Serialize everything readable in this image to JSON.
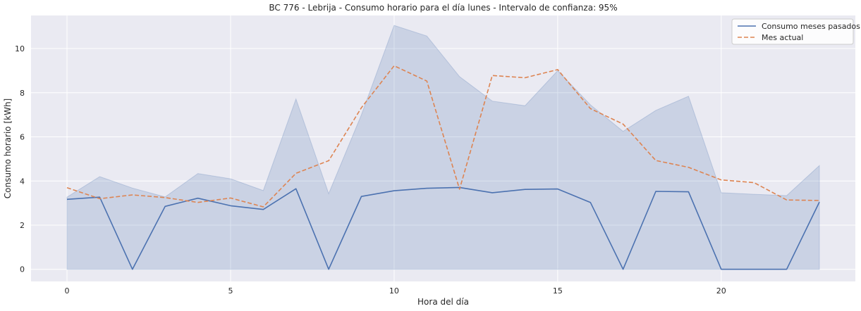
{
  "chart_data": {
    "type": "line",
    "title": "BC 776 - Lebrija - Consumo horario para el día lunes - Intervalo de confianza: 95%",
    "xlabel": "Hora del día",
    "ylabel": "Consumo horario [kWh]",
    "xlim": [
      -1.1,
      24.1
    ],
    "ylim": [
      -0.55,
      11.5
    ],
    "x_ticks": [
      0,
      5,
      10,
      15,
      20
    ],
    "y_ticks": [
      0,
      2,
      4,
      6,
      8,
      10
    ],
    "grid": true,
    "legend_position": "top-right",
    "x": [
      0,
      1,
      2,
      3,
      4,
      5,
      6,
      7,
      8,
      9,
      10,
      11,
      12,
      13,
      14,
      15,
      16,
      17,
      18,
      19,
      20,
      21,
      22,
      23
    ],
    "series": [
      {
        "name": "Consumo meses pasados",
        "style": "solid",
        "color": "#4c72b0",
        "values": [
          3.17,
          3.27,
          0.0,
          2.85,
          3.22,
          2.88,
          2.71,
          3.65,
          0.0,
          3.3,
          3.56,
          3.67,
          3.71,
          3.47,
          3.62,
          3.64,
          3.03,
          0.0,
          3.53,
          3.51,
          0.0,
          0.0,
          0.0,
          3.05
        ]
      },
      {
        "name": "Mes actual",
        "style": "dashed",
        "color": "#dd8452",
        "values": [
          3.7,
          3.2,
          3.37,
          3.25,
          3.03,
          3.23,
          2.83,
          4.35,
          4.92,
          7.32,
          9.22,
          8.53,
          3.63,
          8.78,
          8.68,
          9.05,
          7.28,
          6.58,
          4.93,
          4.62,
          4.05,
          3.93,
          3.14,
          3.12
        ]
      }
    ],
    "confidence_band": {
      "color": "#4c72b0",
      "lower": [
        0,
        0,
        0,
        0,
        0,
        0,
        0,
        0,
        0,
        0,
        0,
        0,
        0,
        0,
        0,
        0,
        0,
        0,
        0,
        0,
        0,
        0,
        0,
        0
      ],
      "upper": [
        3.27,
        4.2,
        3.68,
        3.28,
        4.34,
        4.1,
        3.57,
        7.72,
        3.43,
        7.0,
        11.05,
        10.57,
        8.73,
        7.62,
        7.41,
        9.0,
        7.45,
        6.25,
        7.2,
        7.84,
        3.47,
        3.4,
        3.34,
        4.7
      ]
    },
    "style": {
      "background": "#eaeaf2",
      "grid_color": "#ffffff"
    }
  }
}
